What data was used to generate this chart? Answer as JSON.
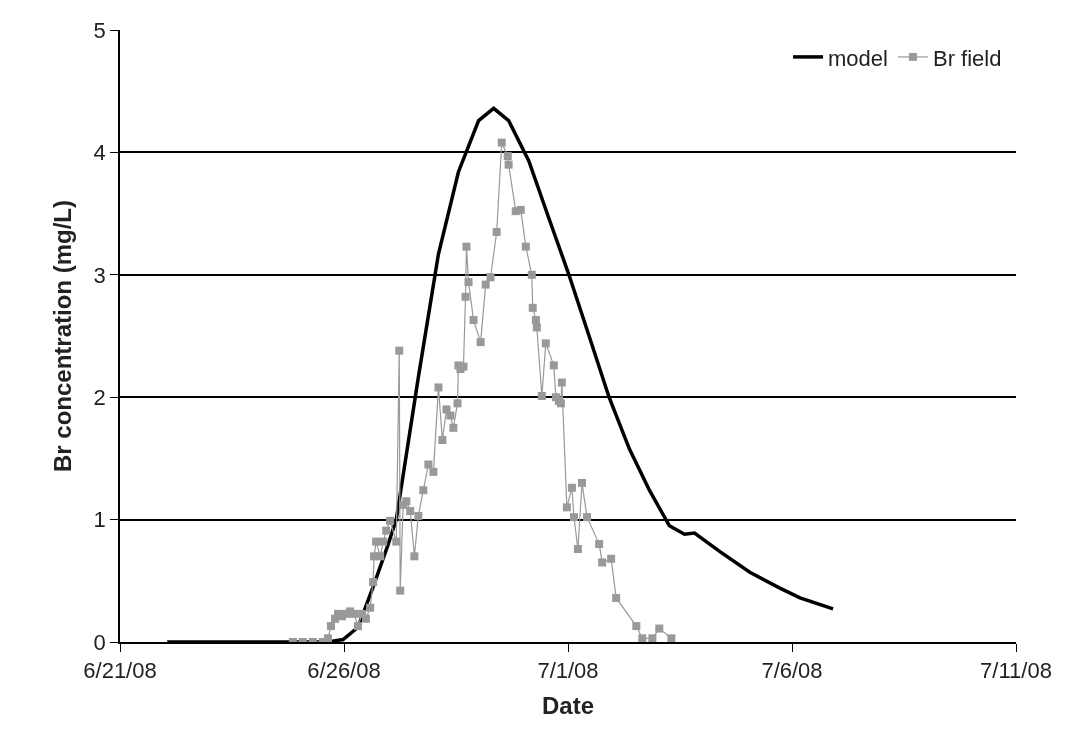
{
  "chart_data": {
    "type": "line",
    "xlabel": "Date",
    "ylabel": "Br concentration (mg/L)",
    "xlim": [
      "--06-21",
      "--07-11"
    ],
    "xticks": [
      {
        "value": "--06-21",
        "label": "6/21/08"
      },
      {
        "value": "--06-26",
        "label": "6/26/08"
      },
      {
        "value": "--07-01",
        "label": "7/1/08"
      },
      {
        "value": "--07-06",
        "label": "7/6/08"
      },
      {
        "value": "--07-11",
        "label": "7/11/08"
      }
    ],
    "ylim": [
      0,
      5
    ],
    "yticks": [
      0,
      1,
      2,
      3,
      4,
      5
    ],
    "grid": "y",
    "legend": "top right",
    "series": [
      {
        "name": "model",
        "color": "#000000",
        "marker": "none",
        "x": [
          "--06-22T01:18",
          "--06-25T15:24",
          "--06-25T23:30",
          "--06-26T07:30",
          "--06-26T15:36",
          "--06-26T23:42",
          "--06-27T04:00",
          "--06-27T15:48",
          "--06-28T02:36",
          "--06-28T13:18",
          "--06-29T00:06",
          "--06-29T08:12",
          "--06-29T16:12",
          "--06-30T03:00",
          "--06-30T13:48",
          "--07-01T00:30",
          "--07-01T11:18",
          "--07-01T22:00",
          "--07-02T08:48",
          "--07-02T19:36",
          "--07-03T06:18",
          "--07-03T14:24",
          "--07-03T19:48",
          "--07-04T09:12",
          "--07-05T01:24",
          "--07-05T17:30",
          "--07-06T04:18",
          "--07-06T22:00"
        ],
        "values": [
          0,
          0,
          0.02,
          0.12,
          0.45,
          0.8,
          1.0,
          2.16,
          3.17,
          3.84,
          4.26,
          4.36,
          4.26,
          3.93,
          3.46,
          3.0,
          2.5,
          2.0,
          1.58,
          1.24,
          0.95,
          0.88,
          0.89,
          0.74,
          0.57,
          0.44,
          0.36,
          0.27
        ]
      },
      {
        "name": "Br field",
        "color": "#999999",
        "marker": "square",
        "x": [
          "--06-24T20:36",
          "--06-25T01:54",
          "--06-25T07:18",
          "--06-25T12:42",
          "--06-25T15:24",
          "--06-25T17:00",
          "--06-25T19:12",
          "--06-25T20:48",
          "--06-25T22:54",
          "--06-26T01:06",
          "--06-26T03:12",
          "--06-26T05:24",
          "--06-26T07:30",
          "--06-26T09:42",
          "--06-26T11:48",
          "--06-26T14:00",
          "--06-26T15:36",
          "--06-26T16:06",
          "--06-26T17:12",
          "--06-26T19:24",
          "--06-26T21:00",
          "--06-26T22:36",
          "--06-27T00:42",
          "--06-27T04:00",
          "--06-27T05:36",
          "--06-27T06:06",
          "--06-27T07:42",
          "--06-27T09:24",
          "--06-27T11:30",
          "--06-27T13:42",
          "--06-27T15:48",
          "--06-27T18:30",
          "--06-27T21:12",
          "--06-27T23:54",
          "--06-28T02:36",
          "--06-28T04:42",
          "--06-28T06:54",
          "--06-28T09:00",
          "--06-28T10:36",
          "--06-28T12:48",
          "--06-28T13:18",
          "--06-28T14:24",
          "--06-28T16:00",
          "--06-28T17:06",
          "--06-28T17:36",
          "--06-28T18:42",
          "--06-28T21:24",
          "--06-29T01:12",
          "--06-29T03:54",
          "--06-29T06:30",
          "--06-29T09:48",
          "--06-29T12:30",
          "--06-29T15:42",
          "--06-29T16:12",
          "--06-29T20:00",
          "--06-29T22:42",
          "--06-30T01:24",
          "--06-30T04:36",
          "--06-30T05:06",
          "--06-30T06:48",
          "--06-30T07:18",
          "--06-30T10:00",
          "--06-30T12:06",
          "--06-30T16:24",
          "--06-30T17:30",
          "--06-30T19:06",
          "--06-30T20:12",
          "--06-30T20:42",
          "--06-30T23:24",
          "--07-01T02:06",
          "--07-01T03:12",
          "--07-01T05:18",
          "--07-01T07:30",
          "--07-01T10:12",
          "--07-01T16:42",
          "--07-01T18:18",
          "--07-01T23:06",
          "--07-02T01:48",
          "--07-02T12:36",
          "--07-02T15:48",
          "--07-02T21:12",
          "--07-03T00:54",
          "--07-03T07:24"
        ],
        "values": [
          0,
          0,
          0,
          0,
          0.03,
          0.13,
          0.19,
          0.23,
          0.21,
          0.23,
          0.25,
          0.23,
          0.13,
          0.23,
          0.19,
          0.28,
          0.49,
          0.7,
          0.82,
          0.7,
          0.82,
          0.91,
          0.99,
          0.82,
          2.38,
          0.42,
          1.12,
          1.15,
          1.07,
          0.7,
          1.03,
          1.24,
          1.45,
          1.39,
          2.08,
          1.65,
          1.9,
          1.85,
          1.75,
          1.95,
          2.26,
          2.23,
          2.25,
          2.82,
          3.23,
          2.94,
          2.63,
          2.45,
          2.92,
          2.98,
          3.35,
          4.08,
          3.97,
          3.9,
          3.52,
          3.53,
          3.23,
          3.0,
          2.73,
          2.63,
          2.57,
          2.01,
          2.44,
          2.26,
          2.0,
          1.97,
          1.95,
          2.12,
          1.1,
          1.26,
          1.02,
          0.76,
          1.3,
          1.02,
          0.8,
          0.65,
          0.68,
          0.36,
          0.13,
          0.03,
          0.03,
          0.11,
          0.03
        ]
      }
    ]
  }
}
